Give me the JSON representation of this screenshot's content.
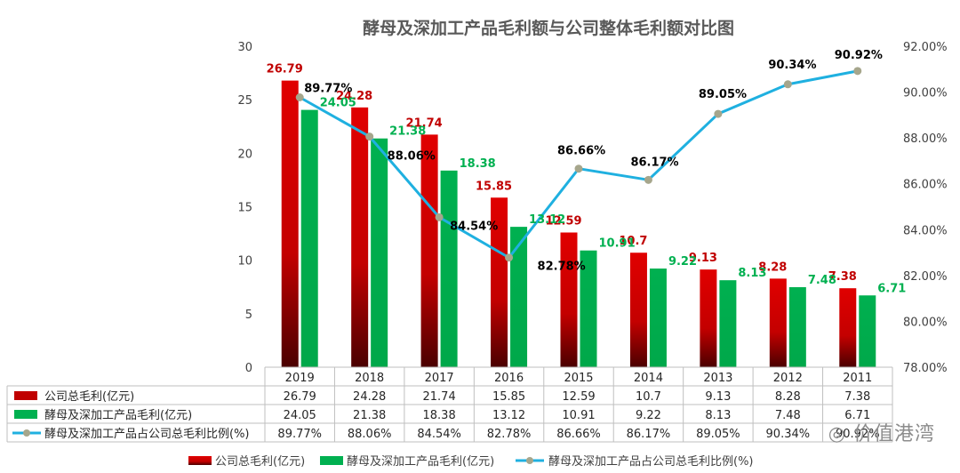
{
  "chart_data": {
    "type": "bar",
    "title": "酵母及深加工产品毛利额与公司整体毛利额对比图",
    "categories": [
      "2019",
      "2018",
      "2017",
      "2016",
      "2015",
      "2014",
      "2013",
      "2012",
      "2011"
    ],
    "series": [
      {
        "name": "公司总毛利(亿元)",
        "type": "bar",
        "axis": "left",
        "color": "#c00000",
        "values": [
          26.79,
          24.28,
          21.74,
          15.85,
          12.59,
          10.7,
          9.13,
          8.28,
          7.38
        ],
        "labels": [
          "26.79",
          "24.28",
          "21.74",
          "15.85",
          "12.59",
          "10.7",
          "9.13",
          "8.28",
          "7.38"
        ],
        "table_values": [
          "26.79",
          "24.28",
          "21.74",
          "15.85",
          "12.59",
          "10.7",
          "9.13",
          "8.28",
          "7.38"
        ]
      },
      {
        "name": "酵母及深加工产品毛利(亿元)",
        "type": "bar",
        "axis": "left",
        "color": "#00b050",
        "values": [
          24.05,
          21.38,
          18.38,
          13.12,
          10.91,
          9.22,
          8.13,
          7.48,
          6.71
        ],
        "labels": [
          "24.05",
          "21.38",
          "18.38",
          "13.12",
          "10.91",
          "9.22",
          "8.13",
          "7.48",
          "6.71"
        ],
        "table_values": [
          "24.05",
          "21.38",
          "18.38",
          "13.12",
          "10.91",
          "9.22",
          "8.13",
          "7.48",
          "6.71"
        ]
      },
      {
        "name": "酵母及深加工产品占公司总毛利比例(%)",
        "type": "line",
        "axis": "right",
        "color": "#1fb0e0",
        "values": [
          89.77,
          88.06,
          84.54,
          82.78,
          86.66,
          86.17,
          89.05,
          90.34,
          90.92
        ],
        "labels": [
          "89.77%",
          "88.06%",
          "84.54%",
          "82.78%",
          "86.66%",
          "86.17%",
          "89.05%",
          "90.34%",
          "90.92%"
        ],
        "table_values": [
          "89.77%",
          "88.06%",
          "84.54%",
          "82.78%",
          "86.66%",
          "86.17%",
          "89.05%",
          "90.34%",
          "90.92%"
        ]
      }
    ],
    "y_left": {
      "range": [
        0,
        30
      ],
      "ticks": [
        "0",
        "5",
        "10",
        "15",
        "20",
        "25",
        "30"
      ]
    },
    "y_right": {
      "range": [
        78,
        92
      ],
      "ticks": [
        "78.00%",
        "80.00%",
        "82.00%",
        "84.00%",
        "86.00%",
        "88.00%",
        "90.00%",
        "92.00%"
      ]
    },
    "grid": false,
    "legend_position": "bottom",
    "legend": {
      "bar_total": "公司总毛利(亿元)",
      "bar_yeast": "酵母及深加工产品毛利(亿元)",
      "line_ratio": "酵母及深加工产品占公司总毛利比例(%)"
    }
  },
  "colors": {
    "red": "#c00000",
    "green": "#00b050",
    "line": "#1fb0e0",
    "marker": "#a6a68c"
  },
  "watermark": "价值港湾",
  "watermark_icon": "wechat-icon"
}
